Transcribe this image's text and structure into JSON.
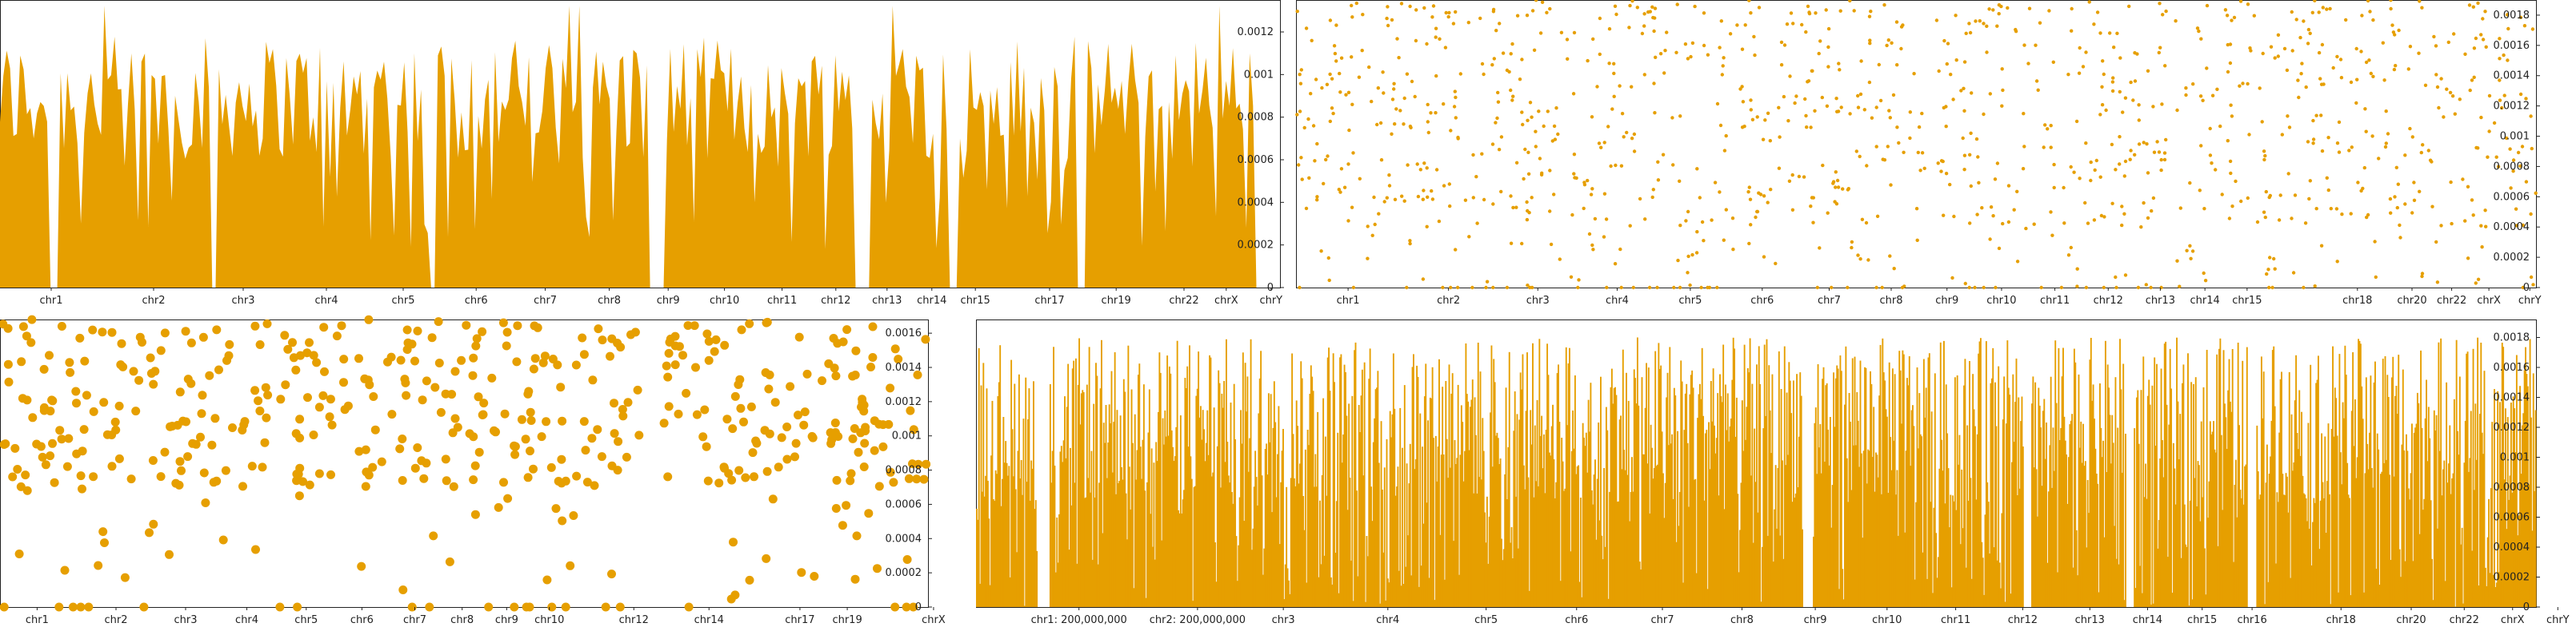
{
  "colors": {
    "series": "#e69f00",
    "axis": "#222222",
    "background": "#ffffff"
  },
  "chart_data": [
    {
      "type": "area",
      "panel": "top-left",
      "ylim": [
        0,
        0.00135
      ],
      "yticks": [
        "0",
        "0.0002",
        "0.0004",
        "0.0006",
        "0.0008",
        "0.001",
        "0.0012"
      ],
      "ytick_values": [
        0,
        0.0002,
        0.0004,
        0.0006,
        0.0008,
        0.001,
        0.0012
      ],
      "y_axis_position": "right",
      "categories": [
        "chr1",
        "chr2",
        "chr3",
        "chr4",
        "chr5",
        "chr6",
        "chr7",
        "chr8",
        "chr9",
        "chr10",
        "chr11",
        "chr12",
        "chr13",
        "chr14",
        "chr15",
        "chr17",
        "chr19",
        "chr22",
        "chrX",
        "chrY"
      ],
      "category_centers": [
        0.04,
        0.12,
        0.19,
        0.255,
        0.315,
        0.372,
        0.426,
        0.476,
        0.522,
        0.566,
        0.611,
        0.653,
        0.693,
        0.728,
        0.762,
        0.82,
        0.872,
        0.925,
        0.958,
        0.993
      ],
      "gaps": [
        [
          0.038,
          0.046
        ],
        [
          0.165,
          0.17
        ],
        [
          0.335,
          0.341
        ],
        [
          0.506,
          0.511
        ],
        [
          0.513,
          0.52
        ],
        [
          0.668,
          0.681
        ],
        [
          0.74,
          0.748
        ],
        [
          0.842,
          0.848
        ],
        [
          0.979,
          1.0
        ]
      ],
      "level_range": [
        0.0006,
        0.00118
      ],
      "n_points": 380,
      "grid": false,
      "legend": "none"
    },
    {
      "type": "scatter",
      "panel": "top-right",
      "ylim": [
        0,
        0.0019
      ],
      "yticks": [
        "0",
        "0.0002",
        "0.0004",
        "0.0006",
        "0.0008",
        "0.001",
        "0.0012",
        "0.0014",
        "0.0016",
        "0.0018"
      ],
      "ytick_values": [
        0,
        0.0002,
        0.0004,
        0.0006,
        0.0008,
        0.001,
        0.0012,
        0.0014,
        0.0016,
        0.0018
      ],
      "y_axis_position": "right",
      "categories": [
        "chr1",
        "chr2",
        "chr3",
        "chr4",
        "chr5",
        "chr6",
        "chr7",
        "chr8",
        "chr9",
        "chr10",
        "chr11",
        "chr12",
        "chr13",
        "chr14",
        "chr15",
        "chr18",
        "chr20",
        "chr22",
        "chrX",
        "chrY"
      ],
      "category_centers": [
        0.042,
        0.123,
        0.195,
        0.259,
        0.318,
        0.376,
        0.43,
        0.48,
        0.525,
        0.569,
        0.612,
        0.655,
        0.697,
        0.733,
        0.767,
        0.856,
        0.9,
        0.932,
        0.962,
        0.995
      ],
      "gaps": [
        [
          0.507,
          0.515
        ],
        [
          0.702,
          0.709
        ]
      ],
      "level_range": [
        0.0004,
        0.0019
      ],
      "n_points": 1100,
      "marker_size": "small",
      "grid": false,
      "legend": "none"
    },
    {
      "type": "scatter",
      "panel": "bottom-left",
      "ylim": [
        0,
        0.00168
      ],
      "yticks": [
        "0",
        "0.0002",
        "0.0004",
        "0.0006",
        "0.0008",
        "0.001",
        "0.0012",
        "0.0014",
        "0.0016"
      ],
      "ytick_values": [
        0,
        0.0002,
        0.0004,
        0.0006,
        0.0008,
        0.001,
        0.0012,
        0.0014,
        0.0016
      ],
      "y_axis_position": "right",
      "categories": [
        "chr1",
        "chr2",
        "chr3",
        "chr4",
        "chr5",
        "chr6",
        "chr7",
        "chr8",
        "chr9",
        "chr10",
        "chr12",
        "chr14",
        "chr17",
        "chr19",
        "chrX"
      ],
      "category_centers": [
        0.04,
        0.125,
        0.2,
        0.266,
        0.33,
        0.39,
        0.447,
        0.498,
        0.546,
        0.592,
        0.683,
        0.764,
        0.862,
        0.913,
        1.006
      ],
      "gaps": [
        [
          0.69,
          0.715
        ]
      ],
      "level_range": [
        0.0007,
        0.00168
      ],
      "n_points": 520,
      "marker_size": "large",
      "grid": false,
      "legend": "none"
    },
    {
      "type": "bar",
      "panel": "bottom-right",
      "ylim": [
        0,
        0.00192
      ],
      "yticks": [
        "0",
        "0.0002",
        "0.0004",
        "0.0006",
        "0.0008",
        "0.001",
        "0.0012",
        "0.0014",
        "0.0016",
        "0.0018"
      ],
      "ytick_values": [
        0,
        0.0002,
        0.0004,
        0.0006,
        0.0008,
        0.001,
        0.0012,
        0.0014,
        0.0016,
        0.0018
      ],
      "y_axis_position": "right",
      "categories": [
        "chr1: 200,000,000",
        "chr2: 200,000,000",
        "chr3",
        "chr4",
        "chr5",
        "chr6",
        "chr7",
        "chr8",
        "chr9",
        "chr10",
        "chr11",
        "chr12",
        "chr13",
        "chr14",
        "chr15",
        "chr16",
        "chr18",
        "chr20",
        "chr22",
        "chrX",
        "chrY"
      ],
      "category_centers": [
        0.066,
        0.142,
        0.197,
        0.264,
        0.327,
        0.385,
        0.44,
        0.491,
        0.538,
        0.584,
        0.628,
        0.671,
        0.714,
        0.751,
        0.786,
        0.818,
        0.875,
        0.92,
        0.954,
        0.985,
        1.014
      ],
      "gaps": [
        [
          0.039,
          0.047
        ],
        [
          0.53,
          0.536
        ],
        [
          0.671,
          0.676
        ],
        [
          0.737,
          0.742
        ],
        [
          0.815,
          0.82
        ]
      ],
      "level_range": [
        0.0007,
        0.0018
      ],
      "n_points": 1400,
      "grid": false,
      "legend": "none"
    }
  ]
}
